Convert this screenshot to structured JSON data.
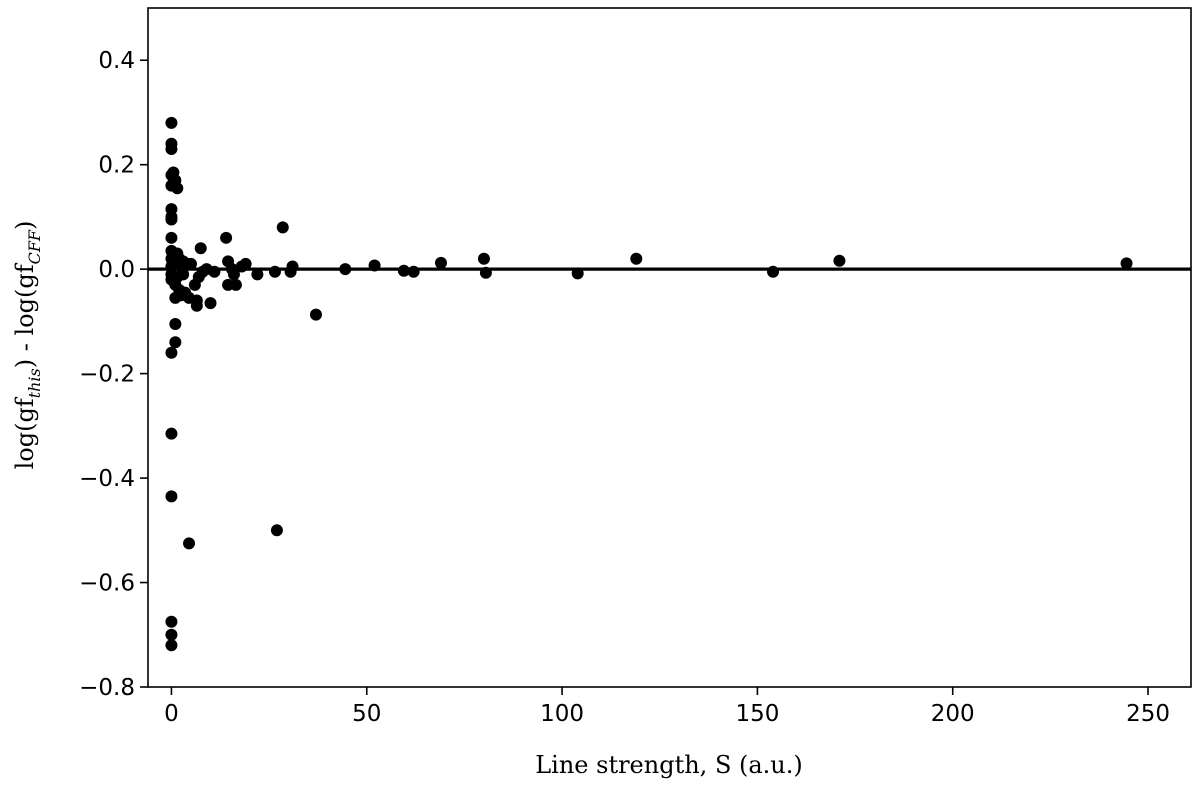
{
  "chart_data": {
    "type": "scatter",
    "xlabel": "Line strength, S (a.u.)",
    "ylabel": {
      "part1": "log(gf",
      "sub1": "this",
      "part2": ") - log(gf",
      "sub2": "CFF",
      "part3": ")"
    },
    "xlim": [
      -6,
      261
    ],
    "ylim": [
      -0.8,
      0.5
    ],
    "xticks": [
      0,
      50,
      100,
      150,
      200,
      250
    ],
    "yticks": [
      0.4,
      0.2,
      0.0,
      -0.2,
      -0.4,
      -0.6,
      -0.8
    ],
    "ytick_labels": [
      "0.4",
      "0.2",
      "0.0",
      "−0.2",
      "−0.4",
      "−0.6",
      "−0.8"
    ],
    "xtick_labels": [
      "0",
      "50",
      "100",
      "150",
      "200",
      "250"
    ],
    "grid": false,
    "reference_line_y": 0.0,
    "marker_color": "#000000",
    "points": [
      {
        "x": 0.0,
        "y": 0.28
      },
      {
        "x": 0.0,
        "y": 0.24
      },
      {
        "x": 0.0,
        "y": 0.23
      },
      {
        "x": 0.0,
        "y": 0.18
      },
      {
        "x": 0.0,
        "y": 0.16
      },
      {
        "x": 0.0,
        "y": 0.115
      },
      {
        "x": 0.0,
        "y": 0.1
      },
      {
        "x": 0.0,
        "y": 0.095
      },
      {
        "x": 0.0,
        "y": 0.06
      },
      {
        "x": 0.0,
        "y": 0.035
      },
      {
        "x": 0.0,
        "y": 0.02
      },
      {
        "x": 0.0,
        "y": 0.005
      },
      {
        "x": 0.0,
        "y": -0.01
      },
      {
        "x": 0.0,
        "y": -0.02
      },
      {
        "x": 0.0,
        "y": -0.16
      },
      {
        "x": 0.0,
        "y": -0.315
      },
      {
        "x": 0.0,
        "y": -0.435
      },
      {
        "x": 0.0,
        "y": -0.675
      },
      {
        "x": 0.0,
        "y": -0.7
      },
      {
        "x": 0.0,
        "y": -0.72
      },
      {
        "x": 0.5,
        "y": 0.185
      },
      {
        "x": 0.5,
        "y": 0.165
      },
      {
        "x": 1.0,
        "y": 0.17
      },
      {
        "x": 1.5,
        "y": 0.155
      },
      {
        "x": 1.0,
        "y": 0.01
      },
      {
        "x": 1.0,
        "y": -0.03
      },
      {
        "x": 1.0,
        "y": -0.055
      },
      {
        "x": 1.0,
        "y": -0.105
      },
      {
        "x": 1.0,
        "y": -0.14
      },
      {
        "x": 1.5,
        "y": 0.03
      },
      {
        "x": 1.5,
        "y": -0.015
      },
      {
        "x": 2.0,
        "y": 0.02
      },
      {
        "x": 2.0,
        "y": -0.04
      },
      {
        "x": 2.5,
        "y": 0.005
      },
      {
        "x": 2.5,
        "y": -0.05
      },
      {
        "x": 3.0,
        "y": 0.015
      },
      {
        "x": 3.0,
        "y": -0.01
      },
      {
        "x": 3.5,
        "y": -0.045
      },
      {
        "x": 4.0,
        "y": 0.01
      },
      {
        "x": 4.5,
        "y": -0.055
      },
      {
        "x": 4.5,
        "y": -0.525
      },
      {
        "x": 5.0,
        "y": 0.01
      },
      {
        "x": 6.0,
        "y": -0.03
      },
      {
        "x": 6.5,
        "y": -0.06
      },
      {
        "x": 6.5,
        "y": -0.07
      },
      {
        "x": 7.0,
        "y": -0.015
      },
      {
        "x": 7.5,
        "y": 0.04
      },
      {
        "x": 8.0,
        "y": -0.005
      },
      {
        "x": 9.0,
        "y": 0.0
      },
      {
        "x": 10.0,
        "y": -0.065
      },
      {
        "x": 11.0,
        "y": -0.005
      },
      {
        "x": 14.0,
        "y": 0.06
      },
      {
        "x": 14.5,
        "y": 0.015
      },
      {
        "x": 14.5,
        "y": -0.03
      },
      {
        "x": 15.5,
        "y": 0.0
      },
      {
        "x": 16.0,
        "y": -0.01
      },
      {
        "x": 16.5,
        "y": -0.03
      },
      {
        "x": 18.0,
        "y": 0.005
      },
      {
        "x": 19.0,
        "y": 0.01
      },
      {
        "x": 22.0,
        "y": -0.01
      },
      {
        "x": 26.5,
        "y": -0.005
      },
      {
        "x": 27.0,
        "y": -0.5
      },
      {
        "x": 28.5,
        "y": 0.08
      },
      {
        "x": 30.5,
        "y": -0.005
      },
      {
        "x": 31.0,
        "y": 0.005
      },
      {
        "x": 37.0,
        "y": -0.087
      },
      {
        "x": 44.5,
        "y": 0.0
      },
      {
        "x": 52.0,
        "y": 0.007
      },
      {
        "x": 59.5,
        "y": -0.003
      },
      {
        "x": 62.0,
        "y": -0.005
      },
      {
        "x": 69.0,
        "y": 0.012
      },
      {
        "x": 80.0,
        "y": 0.02
      },
      {
        "x": 80.5,
        "y": -0.007
      },
      {
        "x": 104.0,
        "y": -0.008
      },
      {
        "x": 119.0,
        "y": 0.02
      },
      {
        "x": 154.0,
        "y": -0.005
      },
      {
        "x": 171.0,
        "y": 0.016
      },
      {
        "x": 244.5,
        "y": 0.011
      }
    ]
  }
}
